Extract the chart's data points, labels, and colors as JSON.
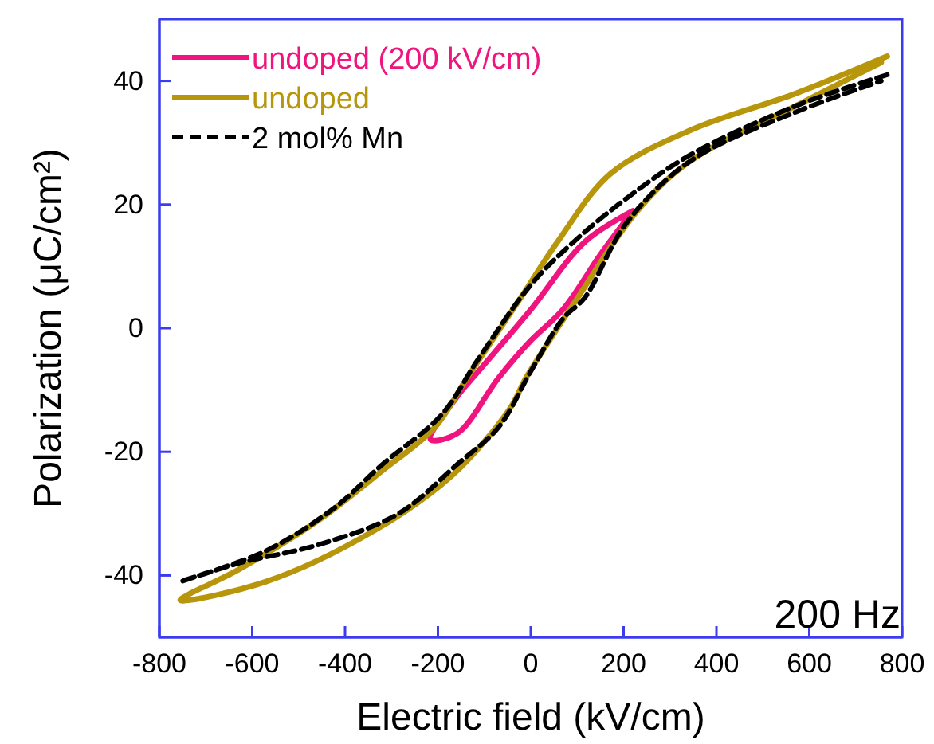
{
  "chart_data": {
    "type": "line",
    "xlabel": "Electric field (kV/cm)",
    "ylabel": "Polarization (μC/cm²)",
    "xlim": [
      -800,
      800
    ],
    "ylim": [
      -50,
      50
    ],
    "xticks": [
      -800,
      -600,
      -400,
      -200,
      0,
      200,
      400,
      600,
      800
    ],
    "yticks": [
      -40,
      -20,
      0,
      20,
      40
    ],
    "grid": false,
    "legend": "top left",
    "annotations": [
      "200 Hz"
    ],
    "series": [
      {
        "name": "undoped (200 kV/cm)",
        "color": "#f0147f",
        "line_style": "solid",
        "x": [
          220,
          117,
          0,
          -113,
          -158,
          -216,
          -158,
          -69,
          0,
          69,
          151,
          210
        ],
        "values": [
          19,
          14,
          3,
          -7,
          -11,
          -18,
          -17,
          -8,
          -2,
          3,
          12,
          18
        ]
      },
      {
        "name": "undoped",
        "color": "#b8960c",
        "line_style": "solid",
        "x": [
          768,
          572,
          343,
          172,
          58,
          -21,
          -137,
          -206,
          -319,
          -456,
          -628,
          -755,
          -570,
          -343,
          -172,
          -45,
          -10,
          93,
          230,
          343,
          572,
          755
        ],
        "values": [
          44,
          38,
          32,
          25,
          14,
          5,
          -8,
          -16,
          -23,
          -31,
          -39,
          -44,
          -41,
          -33,
          -24,
          -13,
          -8,
          4,
          19,
          27,
          36,
          43
        ]
      },
      {
        "name": "2 mol% Mn",
        "color": "#000000",
        "line_style": "dashed",
        "x": [
          768,
          572,
          343,
          206,
          93,
          0,
          -113,
          -192,
          -319,
          -422,
          -570,
          -755,
          -628,
          -456,
          -285,
          -158,
          -69,
          0,
          69,
          117,
          206,
          343,
          572,
          755
        ],
        "values": [
          41,
          36,
          28,
          21,
          14,
          7,
          -5,
          -14,
          -22,
          -29,
          -36,
          -41,
          -38,
          -35,
          -30,
          -22,
          -16,
          -7,
          1.5,
          5,
          17,
          27,
          35,
          40
        ]
      }
    ]
  }
}
